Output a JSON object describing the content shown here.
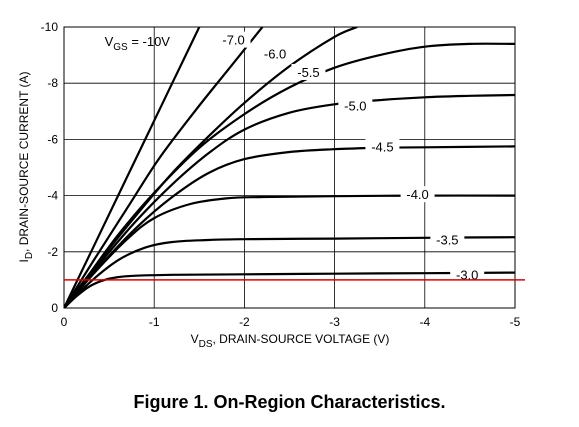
{
  "caption": "Figure 1. On-Region Characteristics.",
  "chart_data": {
    "type": "line",
    "title": "",
    "xlabel": {
      "main": "V",
      "sub": "DS",
      "rest": ", DRAIN-SOURCE VOLTAGE (V)"
    },
    "ylabel": {
      "main": "I",
      "sub": "D",
      "rest": ", DRAIN-SOURCE CURRENT (A)"
    },
    "xlim": [
      0,
      -5
    ],
    "ylim": [
      0,
      -10
    ],
    "x_ticks": [
      0,
      -1,
      -2,
      -3,
      -4,
      -5
    ],
    "y_ticks": [
      0,
      -2,
      -4,
      -6,
      -8,
      -10
    ],
    "x_tick_labels": [
      "0",
      "-1",
      "-2",
      "-3",
      "-4",
      "-5"
    ],
    "y_tick_labels": [
      "0",
      "-2",
      "-4",
      "-6",
      "-8",
      "-10"
    ],
    "grid": true,
    "colors": {
      "curves": "#000000",
      "reference_line": "#dd0000",
      "grid": "#000000"
    },
    "reference_line": {
      "y": -1.0,
      "color": "#dd0000"
    },
    "series": [
      {
        "name": "-10V",
        "label_text": "V",
        "label_sub": "GS",
        "label_rest": " = -10V",
        "label_x": -0.45,
        "label_y": -9.5,
        "points": [
          [
            0,
            0
          ],
          [
            -0.3,
            -2.0
          ],
          [
            -0.6,
            -4.0
          ],
          [
            -0.9,
            -6.0
          ],
          [
            -1.2,
            -8.0
          ],
          [
            -1.5,
            -10.0
          ]
        ]
      },
      {
        "name": "-7.0",
        "label_x": -1.88,
        "label_y": -9.55,
        "points": [
          [
            0,
            0
          ],
          [
            -0.35,
            -1.8
          ],
          [
            -0.7,
            -3.55
          ],
          [
            -1.05,
            -5.3
          ],
          [
            -1.45,
            -7.0
          ],
          [
            -1.85,
            -8.6
          ],
          [
            -2.2,
            -10.0
          ]
        ]
      },
      {
        "name": "-6.0",
        "label_x": -2.34,
        "label_y": -9.05,
        "points": [
          [
            0,
            0
          ],
          [
            -0.4,
            -1.7
          ],
          [
            -0.8,
            -3.3
          ],
          [
            -1.2,
            -4.8
          ],
          [
            -1.6,
            -6.1
          ],
          [
            -2.0,
            -7.3
          ],
          [
            -2.5,
            -8.6
          ],
          [
            -3.0,
            -9.65
          ],
          [
            -3.25,
            -10.0
          ]
        ]
      },
      {
        "name": "-5.5",
        "label_x": -2.71,
        "label_y": -8.4,
        "points": [
          [
            0,
            0
          ],
          [
            -0.3,
            -1.3
          ],
          [
            -0.6,
            -2.6
          ],
          [
            -1.0,
            -4.1
          ],
          [
            -1.5,
            -5.7
          ],
          [
            -2.0,
            -6.9
          ],
          [
            -2.5,
            -7.85
          ],
          [
            -3.0,
            -8.55
          ],
          [
            -3.5,
            -9.0
          ],
          [
            -4.0,
            -9.3
          ],
          [
            -4.5,
            -9.4
          ],
          [
            -5.0,
            -9.4
          ]
        ]
      },
      {
        "name": "-5.0",
        "label_x": -3.23,
        "label_y": -7.2,
        "points": [
          [
            0,
            0
          ],
          [
            -0.4,
            -1.6
          ],
          [
            -0.8,
            -3.1
          ],
          [
            -1.2,
            -4.4
          ],
          [
            -1.6,
            -5.5
          ],
          [
            -2.0,
            -6.35
          ],
          [
            -2.5,
            -6.95
          ],
          [
            -3.0,
            -7.25
          ],
          [
            -3.5,
            -7.4
          ],
          [
            -4.0,
            -7.5
          ],
          [
            -4.5,
            -7.55
          ],
          [
            -5.0,
            -7.58
          ]
        ]
      },
      {
        "name": "-4.5",
        "label_x": -3.53,
        "label_y": -5.75,
        "points": [
          [
            0,
            0
          ],
          [
            -0.4,
            -1.5
          ],
          [
            -0.8,
            -2.85
          ],
          [
            -1.2,
            -3.95
          ],
          [
            -1.6,
            -4.8
          ],
          [
            -2.0,
            -5.3
          ],
          [
            -2.5,
            -5.55
          ],
          [
            -3.0,
            -5.65
          ],
          [
            -3.5,
            -5.7
          ],
          [
            -4.0,
            -5.72
          ],
          [
            -5.0,
            -5.75
          ]
        ]
      },
      {
        "name": "-4.0",
        "label_x": -3.92,
        "label_y": -4.05,
        "points": [
          [
            0,
            0
          ],
          [
            -0.35,
            -1.3
          ],
          [
            -0.7,
            -2.45
          ],
          [
            -1.0,
            -3.2
          ],
          [
            -1.4,
            -3.7
          ],
          [
            -1.8,
            -3.9
          ],
          [
            -2.2,
            -3.95
          ],
          [
            -3.0,
            -3.98
          ],
          [
            -4.0,
            -4.0
          ],
          [
            -5.0,
            -4.0
          ]
        ]
      },
      {
        "name": "-3.5",
        "label_x": -4.25,
        "label_y": -2.43,
        "points": [
          [
            0,
            0
          ],
          [
            -0.3,
            -0.95
          ],
          [
            -0.6,
            -1.7
          ],
          [
            -0.9,
            -2.15
          ],
          [
            -1.2,
            -2.35
          ],
          [
            -1.6,
            -2.42
          ],
          [
            -2.0,
            -2.45
          ],
          [
            -3.0,
            -2.47
          ],
          [
            -4.0,
            -2.5
          ],
          [
            -5.0,
            -2.52
          ]
        ]
      },
      {
        "name": "-3.0",
        "label_x": -4.47,
        "label_y": -1.2,
        "points": [
          [
            0,
            0
          ],
          [
            -0.15,
            -0.45
          ],
          [
            -0.3,
            -0.8
          ],
          [
            -0.45,
            -1.0
          ],
          [
            -0.6,
            -1.1
          ],
          [
            -0.8,
            -1.15
          ],
          [
            -1.2,
            -1.18
          ],
          [
            -2.0,
            -1.2
          ],
          [
            -3.0,
            -1.22
          ],
          [
            -4.0,
            -1.24
          ],
          [
            -5.0,
            -1.26
          ]
        ]
      }
    ]
  }
}
